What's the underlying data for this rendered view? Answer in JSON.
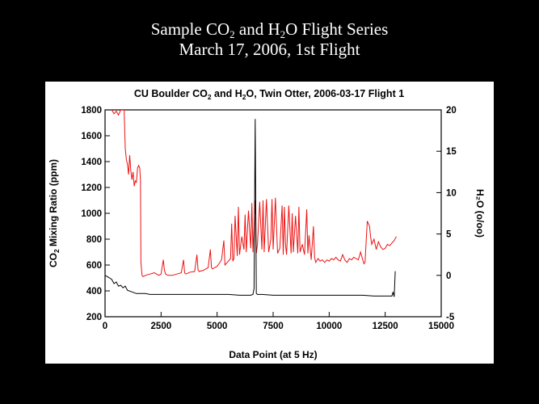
{
  "slide": {
    "title_line1_a": "Sample CO",
    "title_line1_sub1": "2",
    "title_line1_b": " and H",
    "title_line1_sub2": "2",
    "title_line1_c": "O Flight Series",
    "title_line2": "March 17, 2006, 1st Flight"
  },
  "chart_data": {
    "type": "line",
    "title_a": "CU Boulder CO",
    "title_sub1": "2",
    "title_b": " and H",
    "title_sub2": "2",
    "title_c": "O, Twin Otter, 2006-03-17 Flight 1",
    "xlabel": "Data Point (at 5 Hz)",
    "ylabel_left_a": "CO",
    "ylabel_left_sub": "2",
    "ylabel_left_b": " Mixing Ratio (ppm)",
    "ylabel_right": "H₂O (o/oo)",
    "xlim": [
      0,
      15000
    ],
    "ylim_left": [
      200,
      1800
    ],
    "ylim_right": [
      -5,
      20
    ],
    "x_ticks": [
      "0",
      "2500",
      "5000",
      "7500",
      "10000",
      "12500",
      "15000"
    ],
    "y_left_ticks": [
      "200",
      "400",
      "600",
      "800",
      "1000",
      "1200",
      "1400",
      "1600",
      "1800"
    ],
    "y_right_ticks": [
      "-5",
      "0",
      "5",
      "10",
      "15",
      "20"
    ],
    "colors": {
      "co2": "#ee1111",
      "h2o": "#000000"
    },
    "series": [
      {
        "name": "CO2",
        "axis": "left",
        "color": "#ee1111",
        "x": [
          300,
          400,
          500,
          600,
          700,
          850,
          900,
          950,
          1000,
          1050,
          1100,
          1150,
          1200,
          1250,
          1300,
          1350,
          1400,
          1450,
          1500,
          1550,
          1580,
          1600,
          1650,
          1700,
          1800,
          2000,
          2200,
          2400,
          2500,
          2600,
          2650,
          2700,
          2800,
          3000,
          3200,
          3400,
          3500,
          3550,
          3600,
          3800,
          4000,
          4100,
          4150,
          4200,
          4400,
          4600,
          4700,
          4750,
          4800,
          5000,
          5200,
          5300,
          5350,
          5400,
          5600,
          5650,
          5700,
          5750,
          5800,
          5900,
          5950,
          6000,
          6100,
          6200,
          6250,
          6300,
          6400,
          6500,
          6550,
          6600,
          6700,
          6750,
          6800,
          6900,
          7000,
          7050,
          7100,
          7200,
          7300,
          7400,
          7450,
          7500,
          7600,
          7700,
          7800,
          7900,
          7950,
          8000,
          8050,
          8100,
          8200,
          8300,
          8350,
          8400,
          8500,
          8600,
          8650,
          8700,
          8800,
          8900,
          9000,
          9050,
          9100,
          9200,
          9300,
          9350,
          9400,
          9500,
          9600,
          9700,
          9800,
          9900,
          10000,
          10100,
          10200,
          10300,
          10400,
          10500,
          10600,
          10700,
          10800,
          10900,
          11000,
          11100,
          11200,
          11300,
          11400,
          11500,
          11550,
          11600,
          11700,
          11800,
          11850,
          11900,
          12000,
          12100,
          12200,
          12300,
          12400,
          12500,
          12600,
          12700,
          12800,
          12900,
          13000
        ],
        "values": [
          1800,
          1770,
          1790,
          1760,
          1800,
          1800,
          1500,
          1420,
          1380,
          1300,
          1450,
          1330,
          1260,
          1320,
          1210,
          1250,
          1240,
          1350,
          1370,
          1350,
          1250,
          620,
          520,
          510,
          520,
          530,
          540,
          520,
          530,
          640,
          560,
          530,
          520,
          520,
          530,
          540,
          640,
          540,
          530,
          545,
          550,
          680,
          560,
          550,
          560,
          580,
          720,
          580,
          570,
          590,
          640,
          790,
          600,
          610,
          650,
          920,
          630,
          650,
          980,
          670,
          1050,
          680,
          820,
          720,
          990,
          700,
          1020,
          730,
          1080,
          700,
          1100,
          690,
          760,
          1090,
          720,
          1100,
          700,
          1110,
          700,
          800,
          1110,
          720,
          1120,
          690,
          730,
          1060,
          680,
          1050,
          760,
          680,
          1060,
          690,
          1000,
          700,
          980,
          690,
          1050,
          700,
          760,
          680,
          1030,
          690,
          830,
          640,
          900,
          660,
          620,
          650,
          630,
          640,
          620,
          640,
          630,
          650,
          640,
          660,
          640,
          630,
          680,
          640,
          620,
          650,
          640,
          660,
          650,
          640,
          700,
          640,
          610,
          620,
          940,
          900,
          820,
          760,
          800,
          720,
          780,
          740,
          720,
          730,
          760,
          750,
          770,
          790,
          820
        ]
      },
      {
        "name": "H2O",
        "axis": "right",
        "color": "#000000",
        "x": [
          0,
          200,
          300,
          400,
          500,
          600,
          700,
          800,
          900,
          1000,
          1200,
          1400,
          1600,
          1800,
          2000,
          2500,
          3000,
          3500,
          4000,
          4500,
          5000,
          5500,
          6000,
          6500,
          6600,
          6650,
          6700,
          6750,
          6800,
          7000,
          7500,
          8000,
          8500,
          9000,
          9500,
          10000,
          10500,
          11000,
          11500,
          12000,
          12500,
          12800,
          12850,
          12900,
          12950
        ],
        "values": [
          0,
          -0.3,
          -0.5,
          -1.0,
          -0.8,
          -1.3,
          -1.2,
          -1.5,
          -1.3,
          -1.8,
          -2.0,
          -2.2,
          -2.2,
          -2.2,
          -2.3,
          -2.3,
          -2.3,
          -2.3,
          -2.3,
          -2.3,
          -2.3,
          -2.3,
          -2.4,
          -2.4,
          -2.3,
          -1.6,
          18.9,
          -2.2,
          -2.3,
          -2.3,
          -2.4,
          -2.4,
          -2.4,
          -2.4,
          -2.4,
          -2.4,
          -2.4,
          -2.4,
          -2.4,
          -2.5,
          -2.5,
          -2.5,
          -2.0,
          -2.6,
          0.5
        ]
      }
    ]
  }
}
